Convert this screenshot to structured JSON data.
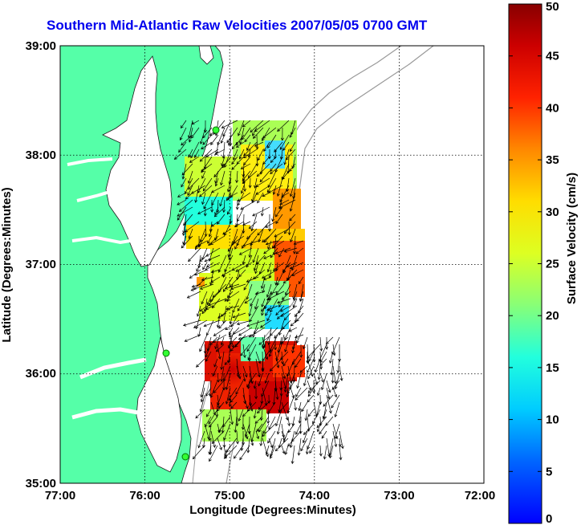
{
  "title": "Southern Mid-Atlantic Raw Velocities 2007/05/05 0700 GMT",
  "x_axis": {
    "label": "Longitude (Degrees:Minutes)",
    "ticks": [
      "77:00",
      "76:00",
      "75:00",
      "74:00",
      "73:00",
      "72:00"
    ]
  },
  "y_axis": {
    "label": "Latitude (Degrees:Minutes)",
    "ticks": [
      "39:00",
      "38:00",
      "37:00",
      "36:00",
      "35:00"
    ]
  },
  "colorbar": {
    "label": "Surface Velocity (cm/s)",
    "ticks": [
      "0",
      "5",
      "10",
      "15",
      "20",
      "25",
      "30",
      "35",
      "40",
      "45",
      "50"
    ],
    "range": [
      0,
      50
    ]
  },
  "map": {
    "lon_range": [
      -77,
      -72
    ],
    "lat_range": [
      35,
      39
    ],
    "grid": true,
    "land_color": "#55ffa8",
    "colormap": "jet"
  }
}
